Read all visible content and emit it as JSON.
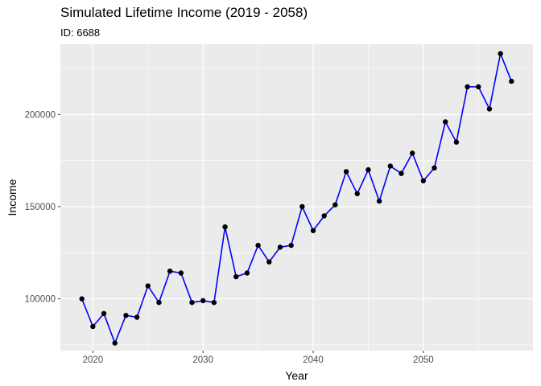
{
  "chart_data": {
    "type": "line",
    "title": "Simulated Lifetime Income (2019 - 2058)",
    "subtitle": "ID: 6688",
    "xlabel": "Year",
    "ylabel": "Income",
    "xlim": [
      2017.05,
      2059.95
    ],
    "ylim": [
      71900,
      238100
    ],
    "x_ticks": [
      2020,
      2030,
      2040,
      2050
    ],
    "y_ticks": [
      100000,
      150000,
      200000
    ],
    "x_tick_labels": [
      "2020",
      "2030",
      "2040",
      "2050"
    ],
    "y_tick_labels": [
      "100000",
      "150000",
      "200000"
    ],
    "grid": true,
    "x": [
      2019,
      2020,
      2021,
      2022,
      2023,
      2024,
      2025,
      2026,
      2027,
      2028,
      2029,
      2030,
      2031,
      2032,
      2033,
      2034,
      2035,
      2036,
      2037,
      2038,
      2039,
      2040,
      2041,
      2042,
      2043,
      2044,
      2045,
      2046,
      2047,
      2048,
      2049,
      2050,
      2051,
      2052,
      2053,
      2054,
      2055,
      2056,
      2057,
      2058
    ],
    "series": [
      {
        "values": [
          100000,
          85000,
          92000,
          76000,
          91000,
          90000,
          107000,
          98000,
          115000,
          114000,
          98000,
          99000,
          98000,
          139000,
          112000,
          114000,
          129000,
          120000,
          128000,
          129000,
          150000,
          137000,
          145000,
          151000,
          169000,
          157000,
          170000,
          153000,
          172000,
          168000,
          179000,
          164000,
          171000,
          196000,
          185000,
          215000,
          215000,
          203000,
          233000,
          218000
        ],
        "line_color": "#0000ff",
        "point_color": "#000000"
      }
    ],
    "colors": {
      "panel_background": "#ebebeb",
      "grid_major": "#ffffff",
      "line": "#0000ff",
      "points": "#000000"
    }
  }
}
